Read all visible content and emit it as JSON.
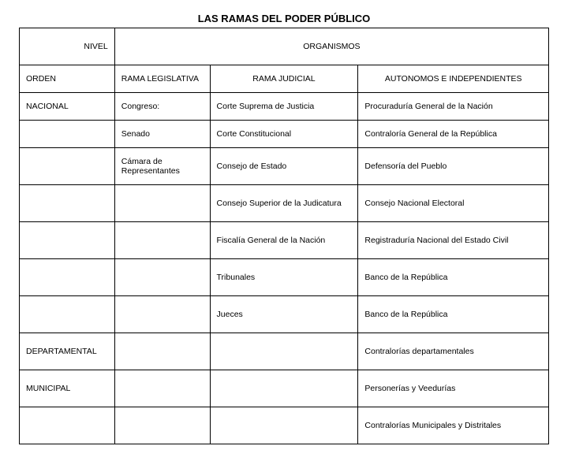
{
  "title": "LAS RAMAS DEL PODER PÚBLICO",
  "header": {
    "nivel": "NIVEL",
    "organismos": "ORGANISMOS"
  },
  "subheader": {
    "orden": "ORDEN",
    "rama_legislativa": "RAMA LEGISLATIVA",
    "rama_judicial": "RAMA JUDICIAL",
    "autonomos": "AUTONOMOS E INDEPENDIENTES"
  },
  "rows": [
    {
      "c0": "NACIONAL",
      "c1": "Congreso:",
      "c2": "Corte Suprema de Justicia",
      "c3": "Procuraduría General de la Nación"
    },
    {
      "c0": "",
      "c1": "Senado",
      "c2": "Corte Constitucional",
      "c3": "Contraloría General de la República"
    },
    {
      "c0": "",
      "c1": "Cámara de Representantes",
      "c2": "Consejo de Estado",
      "c3": "Defensoría del Pueblo"
    },
    {
      "c0": "",
      "c1": "",
      "c2": "Consejo Superior de la Judicatura",
      "c3": "Consejo Nacional Electoral"
    },
    {
      "c0": "",
      "c1": "",
      "c2": "Fiscalía General de la Nación",
      "c3": "Registraduría Nacional del Estado Civil"
    },
    {
      "c0": "",
      "c1": "",
      "c2": "Tribunales",
      "c3": "Banco  de la República"
    },
    {
      "c0": "",
      "c1": "",
      "c2": "Jueces",
      "c3": "Banco de la República"
    },
    {
      "c0": "DEPARTAMENTAL",
      "c1": "",
      "c2": "",
      "c3": "Contralorías departamentales"
    },
    {
      "c0": "MUNICIPAL",
      "c1": "",
      "c2": "",
      "c3": "Personerías y Veedurías"
    },
    {
      "c0": "",
      "c1": "",
      "c2": "",
      "c3": "Contralorías Municipales y Distritales"
    }
  ]
}
